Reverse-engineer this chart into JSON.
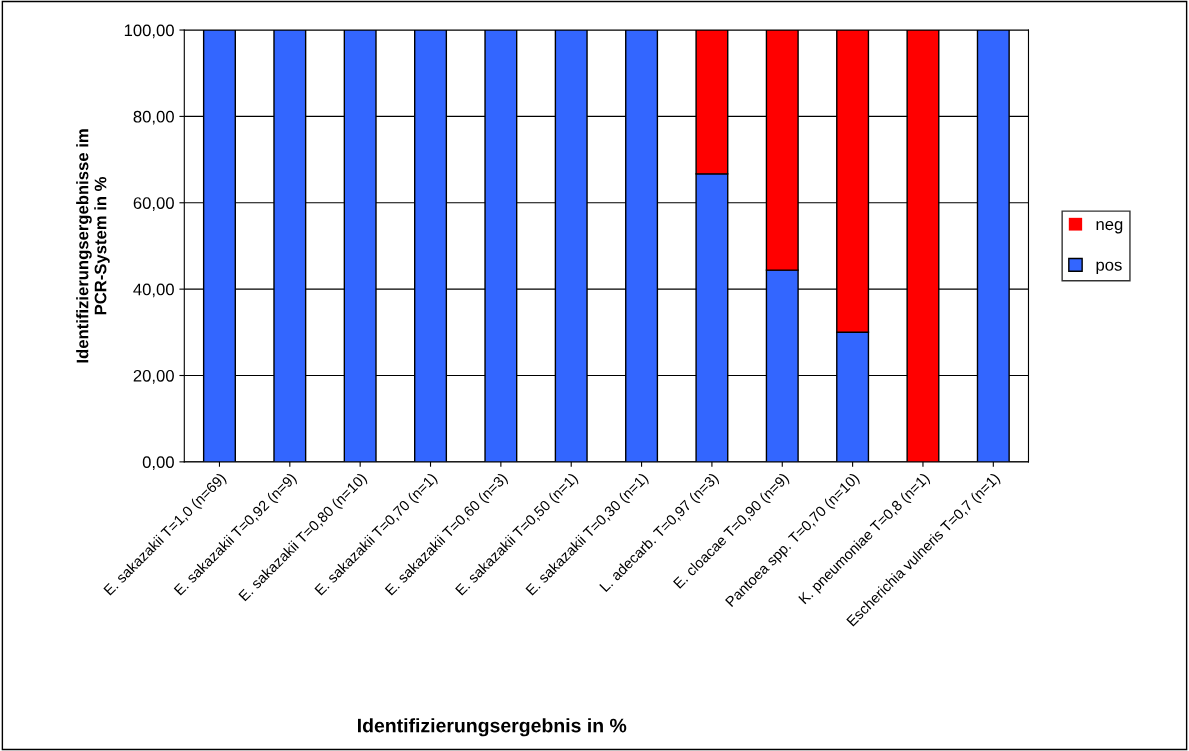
{
  "chart_data": {
    "type": "bar",
    "stacked": true,
    "xlabel": "Identifizierungsergebnis in %",
    "ylabel": "Identifizierungsergebnisse im\nPCR-System in %",
    "categories": [
      "E. sakazakii T=1,0 (n=69)",
      "E. sakazakii T=0,92 (n=9)",
      "E. sakazakii T=0,80 (n=10)",
      "E. sakazakii T=0,70 (n=1)",
      "E. sakazakii T=0,60 (n=3)",
      "E. sakazakii T=0,50 (n=1)",
      "E. sakazakii T=0,30 (n=1)",
      "L. adecarb. T=0,97 (n=3)",
      "E. cloacae T=0,90 (n=9)",
      "Pantoea spp. T=0,70 (n=10)",
      "K. pneumoniae T=0,8 (n=1)",
      "Escherichia vulneris T=0,7 (n=1)"
    ],
    "series": [
      {
        "name": "pos",
        "color": "#3366ff",
        "values": [
          100,
          100,
          100,
          100,
          100,
          100,
          100,
          66.7,
          44.4,
          30,
          0,
          100
        ]
      },
      {
        "name": "neg",
        "color": "#ff0000",
        "values": [
          0,
          0,
          0,
          0,
          0,
          0,
          0,
          33.3,
          55.6,
          70,
          100,
          0
        ]
      }
    ],
    "ylim": [
      0,
      100
    ],
    "yticks": [
      {
        "value": 0,
        "label": "0,00"
      },
      {
        "value": 20,
        "label": "20,00"
      },
      {
        "value": 40,
        "label": "40,00"
      },
      {
        "value": 60,
        "label": "60,00"
      },
      {
        "value": 80,
        "label": "80,00"
      },
      {
        "value": 100,
        "label": "100,00"
      }
    ],
    "grid": "y",
    "legend": "right"
  }
}
